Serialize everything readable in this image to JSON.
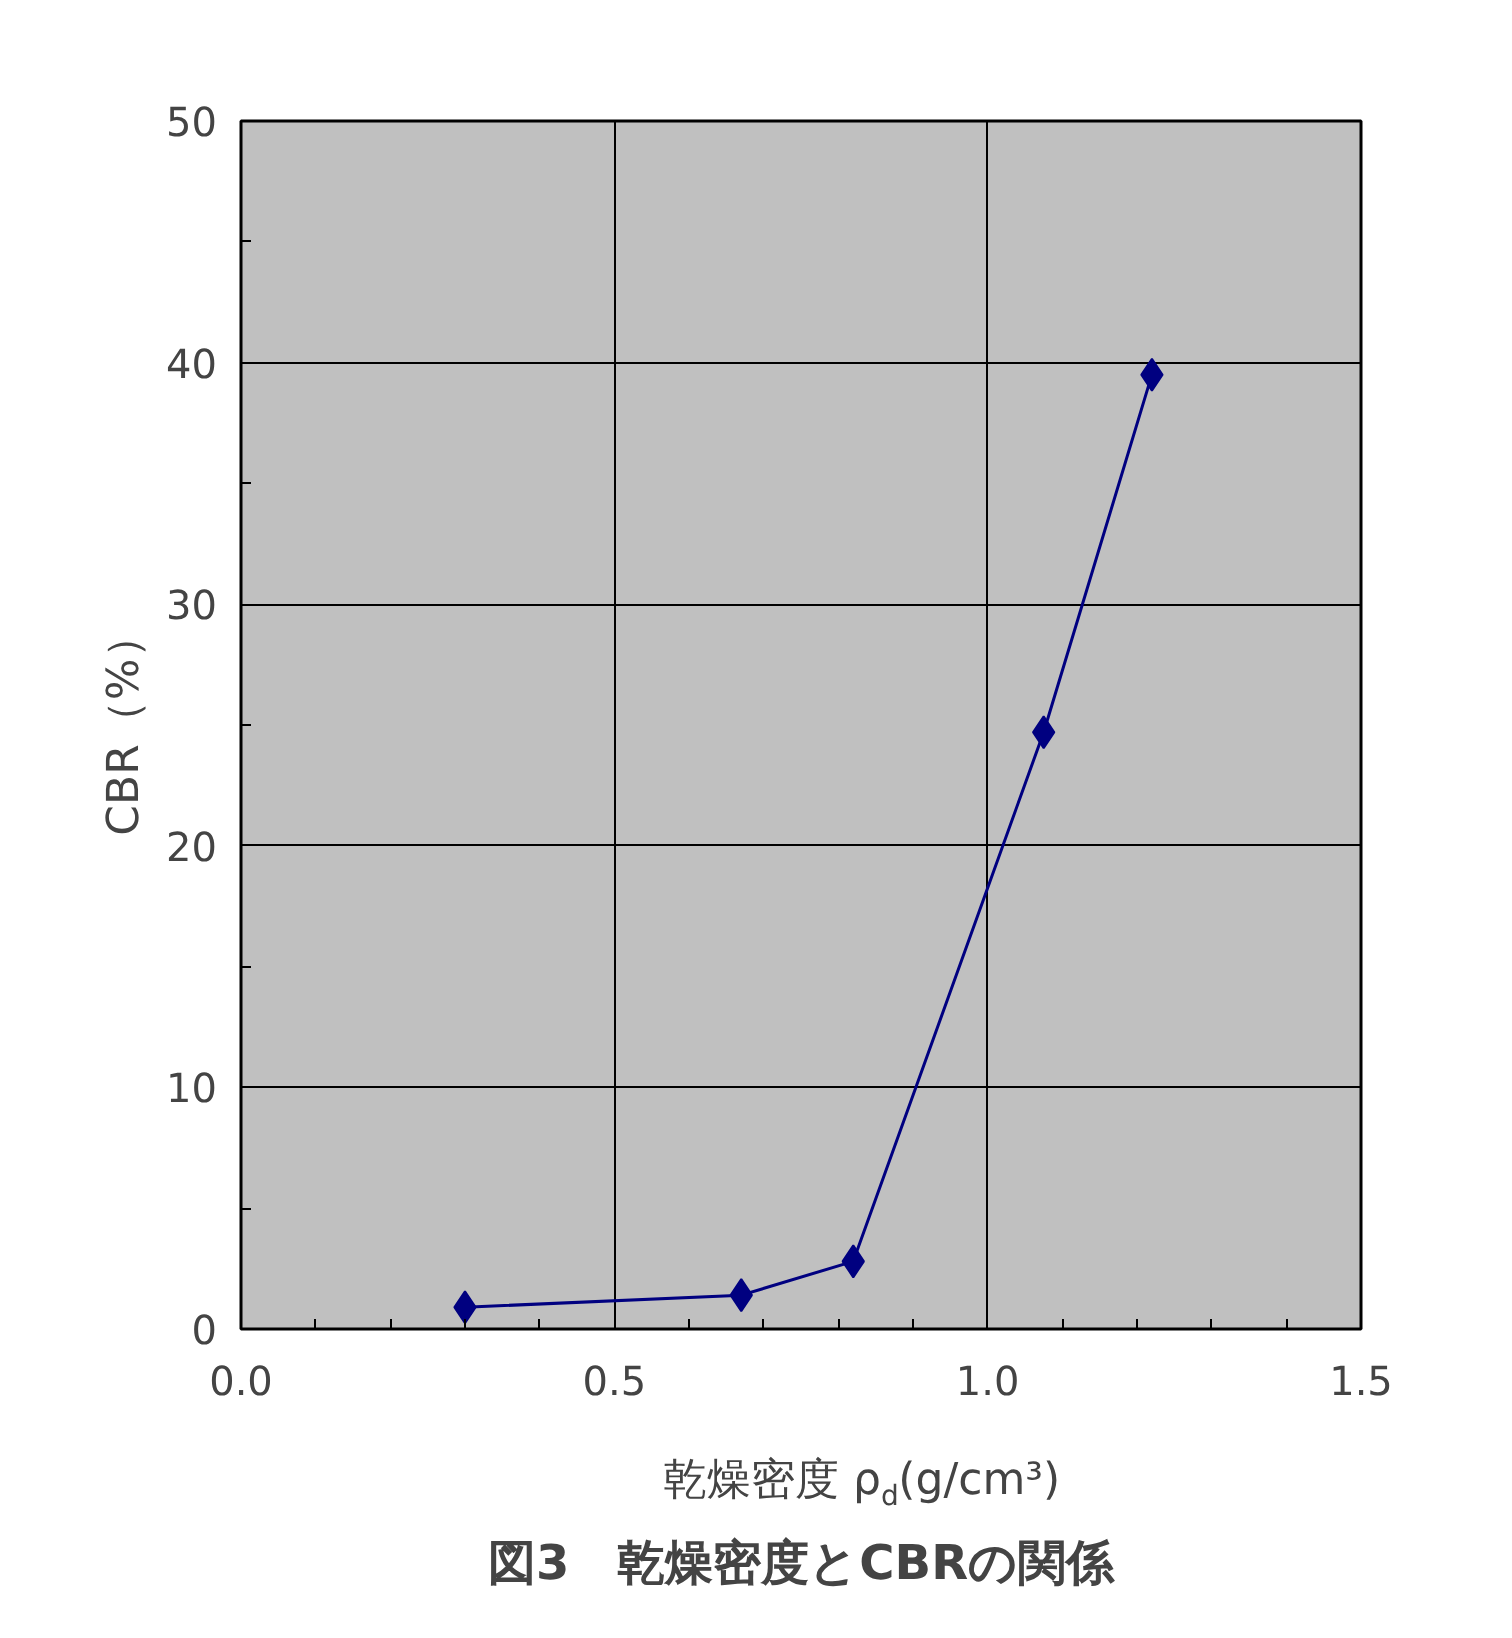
{
  "chart_data": {
    "type": "line",
    "title": "図3　乾燥密度とCBRの関係",
    "xlabel": "乾燥密度 ρ$_{d}$(g/cm³)",
    "ylabel": "CBR（%）",
    "x": [
      0.3,
      0.67,
      0.82,
      1.075,
      1.22
    ],
    "series": [
      {
        "color": "#000080",
        "values": [
          0.9,
          1.4,
          2.8,
          24.7,
          39.5
        ]
      }
    ],
    "xlim": [
      0,
      1.5
    ],
    "ylim": [
      0,
      50
    ],
    "xticks": [
      {
        "value": 0,
        "label": "0.0"
      },
      {
        "value": 0.1,
        "label": null
      },
      {
        "value": 0.2,
        "label": null
      },
      {
        "value": 0.3,
        "label": null
      },
      {
        "value": 0.4,
        "label": null
      },
      {
        "value": 0.5,
        "label": "0.5"
      },
      {
        "value": 0.6,
        "label": null
      },
      {
        "value": 0.7,
        "label": null
      },
      {
        "value": 0.8,
        "label": null
      },
      {
        "value": 0.9,
        "label": null
      },
      {
        "value": 1.0,
        "label": "1.0"
      },
      {
        "value": 1.1,
        "label": null
      },
      {
        "value": 1.2,
        "label": null
      },
      {
        "value": 1.3,
        "label": null
      },
      {
        "value": 1.4,
        "label": null
      },
      {
        "value": 1.5,
        "label": "1.5"
      }
    ],
    "yticks": [
      0,
      {
        "value": 5,
        "label": null
      },
      10,
      {
        "value": 15,
        "label": null
      },
      20,
      {
        "value": 25,
        "label": null
      },
      30,
      {
        "value": 35,
        "label": null
      },
      40,
      {
        "value": 45,
        "label": null
      },
      50
    ],
    "grid": true,
    "marker": "diamond",
    "line_style": "solid"
  }
}
